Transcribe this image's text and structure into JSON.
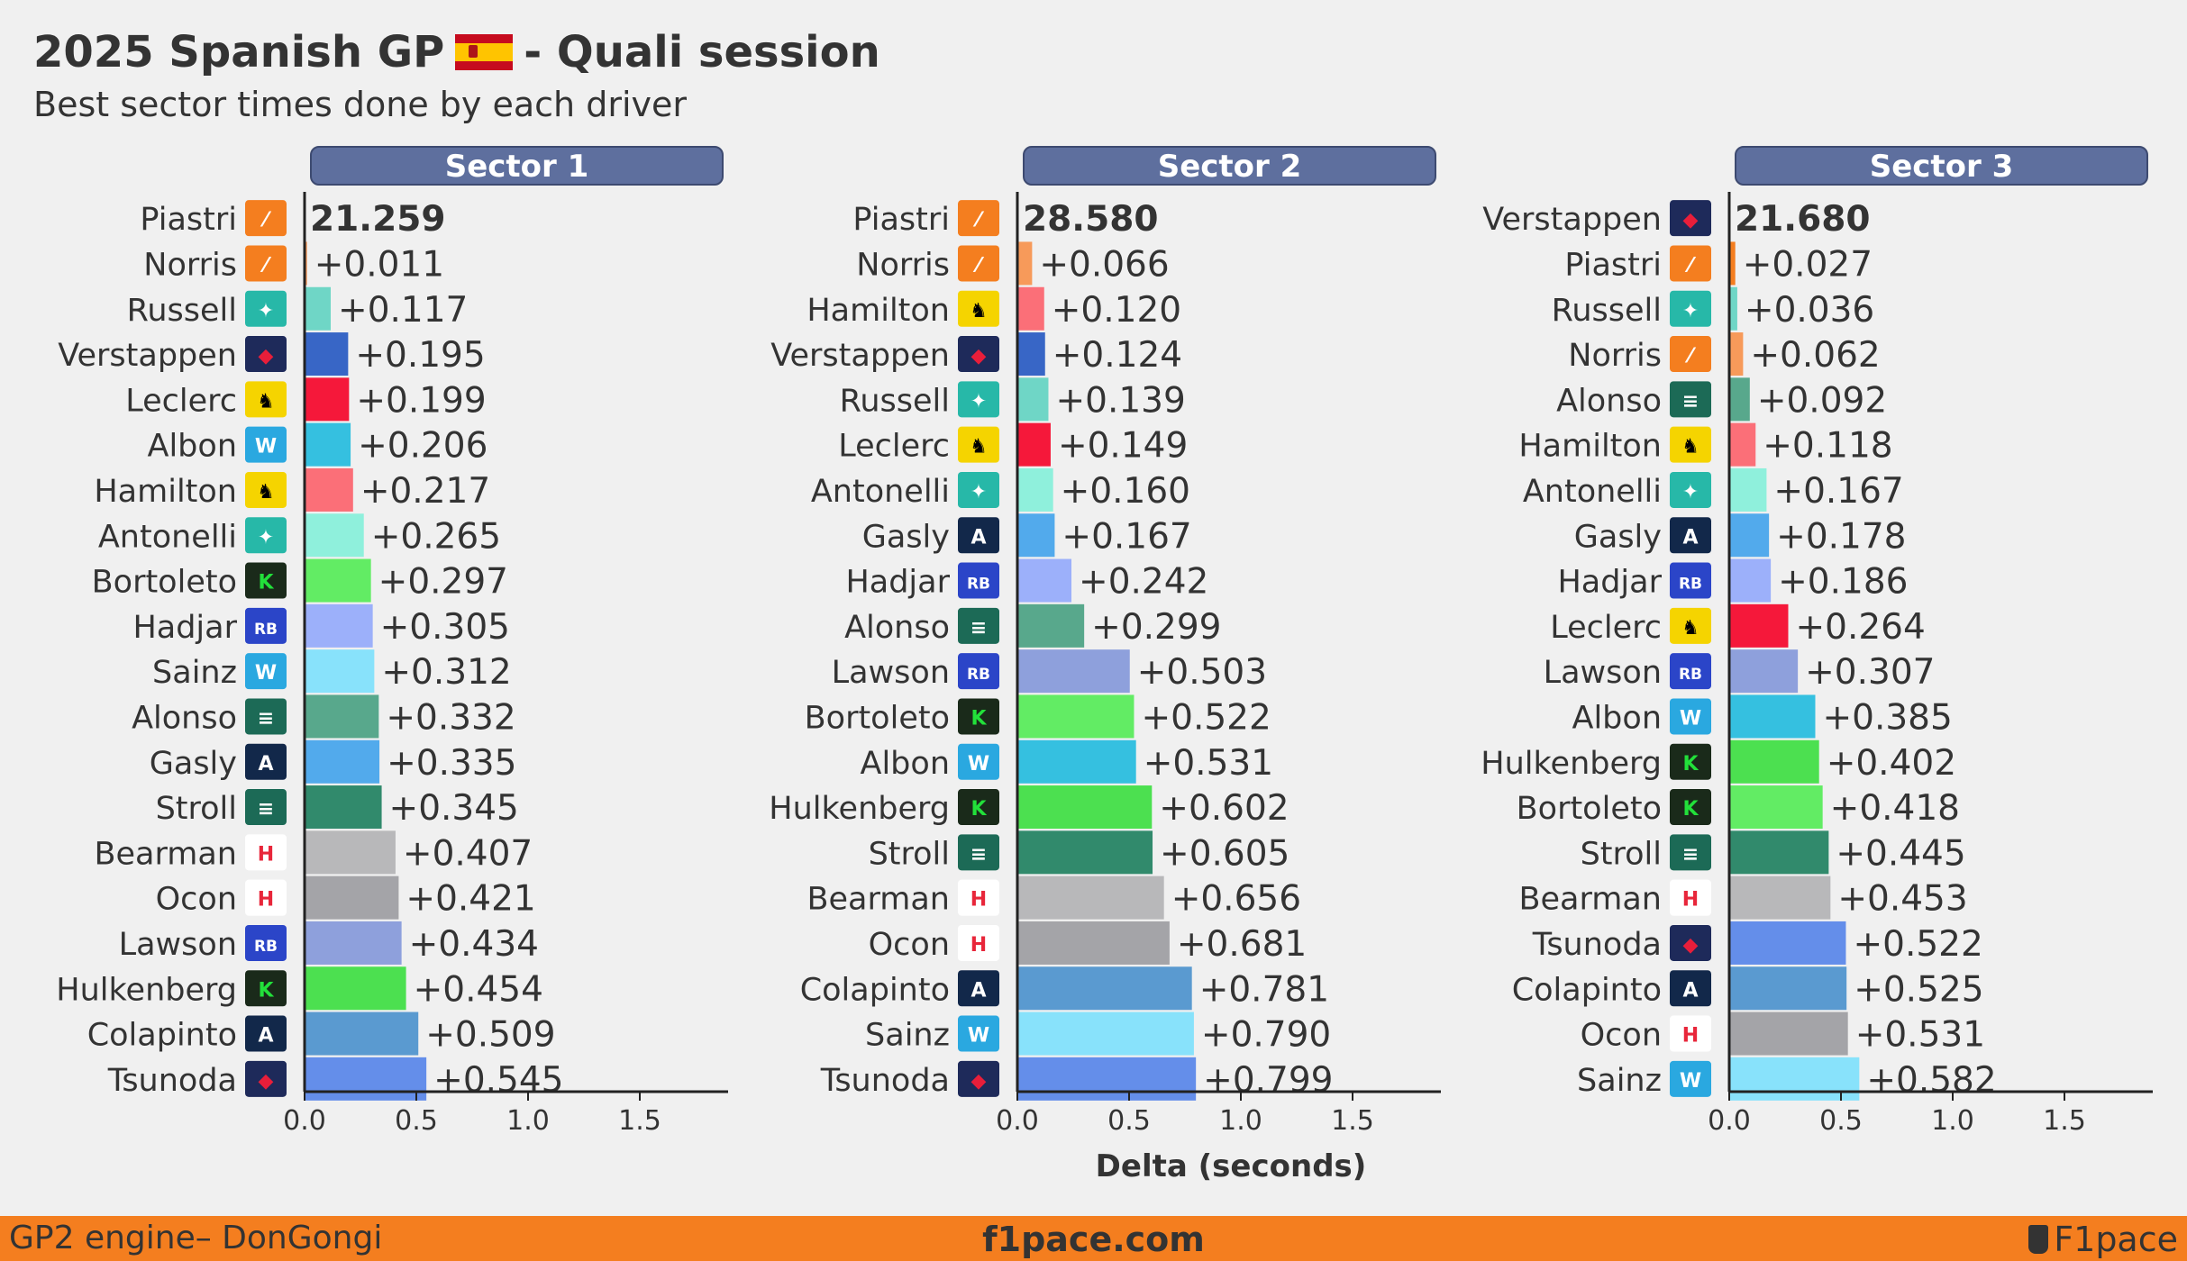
{
  "header": {
    "title_left": "2025 Spanish GP",
    "title_right": "- Quali session",
    "flag_icon": "spain-flag-icon",
    "subtitle": "Best sector times done by each driver"
  },
  "footer": {
    "left": "GP2 engine– DonGongi",
    "center": "f1pace.com",
    "right": "F1pace",
    "right_icon": "cup-icon"
  },
  "team_colors": {
    "mclaren": "#f47e1f",
    "mercedes": "#27b8a8",
    "redbull": "#1e2a5a",
    "ferrari": "#f5d400",
    "williams": "#2aa8e0",
    "sauber": "#1a2a1a",
    "racingbulls": "#2b45c8",
    "astonmartin": "#1c6a56",
    "alpine": "#12284a",
    "haas": "#e8263a"
  },
  "chart_data": [
    {
      "type": "bar",
      "title": "Sector 1",
      "best_time": "21.259",
      "xlabel": "",
      "xlim": [
        0,
        1.85
      ],
      "xticks": [
        "0.0",
        "0.5",
        "1.0",
        "1.5"
      ],
      "drivers": [
        {
          "name": "Piastri",
          "team": "mclaren",
          "delta": 0,
          "label": "21.259",
          "color": "#f47e1f"
        },
        {
          "name": "Norris",
          "team": "mclaren",
          "delta": 0.011,
          "label": "+0.011",
          "color": "#f79a5a"
        },
        {
          "name": "Russell",
          "team": "mercedes",
          "delta": 0.117,
          "label": "+0.117",
          "color": "#6fd6c6"
        },
        {
          "name": "Verstappen",
          "team": "redbull",
          "delta": 0.195,
          "label": "+0.195",
          "color": "#3866c6"
        },
        {
          "name": "Leclerc",
          "team": "ferrari",
          "delta": 0.199,
          "label": "+0.199",
          "color": "#f5183a"
        },
        {
          "name": "Albon",
          "team": "williams",
          "delta": 0.206,
          "label": "+0.206",
          "color": "#35c0e0"
        },
        {
          "name": "Hamilton",
          "team": "ferrari",
          "delta": 0.217,
          "label": "+0.217",
          "color": "#fb6f78"
        },
        {
          "name": "Antonelli",
          "team": "mercedes",
          "delta": 0.265,
          "label": "+0.265",
          "color": "#8ff0dc"
        },
        {
          "name": "Bortoleto",
          "team": "sauber",
          "delta": 0.297,
          "label": "+0.297",
          "color": "#62ec64"
        },
        {
          "name": "Hadjar",
          "team": "racingbulls",
          "delta": 0.305,
          "label": "+0.305",
          "color": "#9cb0fa"
        },
        {
          "name": "Sainz",
          "team": "williams",
          "delta": 0.312,
          "label": "+0.312",
          "color": "#88e2fb"
        },
        {
          "name": "Alonso",
          "team": "astonmartin",
          "delta": 0.332,
          "label": "+0.332",
          "color": "#58a88c"
        },
        {
          "name": "Gasly",
          "team": "alpine",
          "delta": 0.335,
          "label": "+0.335",
          "color": "#52aaec"
        },
        {
          "name": "Stroll",
          "team": "astonmartin",
          "delta": 0.345,
          "label": "+0.345",
          "color": "#318a6c"
        },
        {
          "name": "Bearman",
          "team": "haas",
          "delta": 0.407,
          "label": "+0.407",
          "color": "#b8b8ba"
        },
        {
          "name": "Ocon",
          "team": "haas",
          "delta": 0.421,
          "label": "+0.421",
          "color": "#a4a4a8"
        },
        {
          "name": "Lawson",
          "team": "racingbulls",
          "delta": 0.434,
          "label": "+0.434",
          "color": "#8ea0dc"
        },
        {
          "name": "Hulkenberg",
          "team": "sauber",
          "delta": 0.454,
          "label": "+0.454",
          "color": "#4ce050"
        },
        {
          "name": "Colapinto",
          "team": "alpine",
          "delta": 0.509,
          "label": "+0.509",
          "color": "#5a9ad0"
        },
        {
          "name": "Tsunoda",
          "team": "redbull",
          "delta": 0.545,
          "label": "+0.545",
          "color": "#648eea"
        }
      ]
    },
    {
      "type": "bar",
      "title": "Sector 2",
      "best_time": "28.580",
      "xlabel": "Delta (seconds)",
      "xlim": [
        0,
        1.85
      ],
      "xticks": [
        "0.0",
        "0.5",
        "1.0",
        "1.5"
      ],
      "drivers": [
        {
          "name": "Piastri",
          "team": "mclaren",
          "delta": 0,
          "label": "28.580",
          "color": "#f47e1f"
        },
        {
          "name": "Norris",
          "team": "mclaren",
          "delta": 0.066,
          "label": "+0.066",
          "color": "#f79a5a"
        },
        {
          "name": "Hamilton",
          "team": "ferrari",
          "delta": 0.12,
          "label": "+0.120",
          "color": "#fb6f78"
        },
        {
          "name": "Verstappen",
          "team": "redbull",
          "delta": 0.124,
          "label": "+0.124",
          "color": "#3866c6"
        },
        {
          "name": "Russell",
          "team": "mercedes",
          "delta": 0.139,
          "label": "+0.139",
          "color": "#6fd6c6"
        },
        {
          "name": "Leclerc",
          "team": "ferrari",
          "delta": 0.149,
          "label": "+0.149",
          "color": "#f5183a"
        },
        {
          "name": "Antonelli",
          "team": "mercedes",
          "delta": 0.16,
          "label": "+0.160",
          "color": "#8ff0dc"
        },
        {
          "name": "Gasly",
          "team": "alpine",
          "delta": 0.167,
          "label": "+0.167",
          "color": "#52aaec"
        },
        {
          "name": "Hadjar",
          "team": "racingbulls",
          "delta": 0.242,
          "label": "+0.242",
          "color": "#9cb0fa"
        },
        {
          "name": "Alonso",
          "team": "astonmartin",
          "delta": 0.299,
          "label": "+0.299",
          "color": "#58a88c"
        },
        {
          "name": "Lawson",
          "team": "racingbulls",
          "delta": 0.503,
          "label": "+0.503",
          "color": "#8ea0dc"
        },
        {
          "name": "Bortoleto",
          "team": "sauber",
          "delta": 0.522,
          "label": "+0.522",
          "color": "#62ec64"
        },
        {
          "name": "Albon",
          "team": "williams",
          "delta": 0.531,
          "label": "+0.531",
          "color": "#35c0e0"
        },
        {
          "name": "Hulkenberg",
          "team": "sauber",
          "delta": 0.602,
          "label": "+0.602",
          "color": "#4ce050"
        },
        {
          "name": "Stroll",
          "team": "astonmartin",
          "delta": 0.605,
          "label": "+0.605",
          "color": "#318a6c"
        },
        {
          "name": "Bearman",
          "team": "haas",
          "delta": 0.656,
          "label": "+0.656",
          "color": "#b8b8ba"
        },
        {
          "name": "Ocon",
          "team": "haas",
          "delta": 0.681,
          "label": "+0.681",
          "color": "#a4a4a8"
        },
        {
          "name": "Colapinto",
          "team": "alpine",
          "delta": 0.781,
          "label": "+0.781",
          "color": "#5a9ad0"
        },
        {
          "name": "Sainz",
          "team": "williams",
          "delta": 0.79,
          "label": "+0.790",
          "color": "#88e2fb"
        },
        {
          "name": "Tsunoda",
          "team": "redbull",
          "delta": 0.799,
          "label": "+0.799",
          "color": "#648eea"
        }
      ]
    },
    {
      "type": "bar",
      "title": "Sector 3",
      "best_time": "21.680",
      "xlabel": "",
      "xlim": [
        0,
        1.85
      ],
      "xticks": [
        "0.0",
        "0.5",
        "1.0",
        "1.5"
      ],
      "drivers": [
        {
          "name": "Verstappen",
          "team": "redbull",
          "delta": 0,
          "label": "21.680",
          "color": "#3866c6"
        },
        {
          "name": "Piastri",
          "team": "mclaren",
          "delta": 0.027,
          "label": "+0.027",
          "color": "#f47e1f"
        },
        {
          "name": "Russell",
          "team": "mercedes",
          "delta": 0.036,
          "label": "+0.036",
          "color": "#6fd6c6"
        },
        {
          "name": "Norris",
          "team": "mclaren",
          "delta": 0.062,
          "label": "+0.062",
          "color": "#f79a5a"
        },
        {
          "name": "Alonso",
          "team": "astonmartin",
          "delta": 0.092,
          "label": "+0.092",
          "color": "#58a88c"
        },
        {
          "name": "Hamilton",
          "team": "ferrari",
          "delta": 0.118,
          "label": "+0.118",
          "color": "#fb6f78"
        },
        {
          "name": "Antonelli",
          "team": "mercedes",
          "delta": 0.167,
          "label": "+0.167",
          "color": "#8ff0dc"
        },
        {
          "name": "Gasly",
          "team": "alpine",
          "delta": 0.178,
          "label": "+0.178",
          "color": "#52aaec"
        },
        {
          "name": "Hadjar",
          "team": "racingbulls",
          "delta": 0.186,
          "label": "+0.186",
          "color": "#9cb0fa"
        },
        {
          "name": "Leclerc",
          "team": "ferrari",
          "delta": 0.264,
          "label": "+0.264",
          "color": "#f5183a"
        },
        {
          "name": "Lawson",
          "team": "racingbulls",
          "delta": 0.307,
          "label": "+0.307",
          "color": "#8ea0dc"
        },
        {
          "name": "Albon",
          "team": "williams",
          "delta": 0.385,
          "label": "+0.385",
          "color": "#35c0e0"
        },
        {
          "name": "Hulkenberg",
          "team": "sauber",
          "delta": 0.402,
          "label": "+0.402",
          "color": "#4ce050"
        },
        {
          "name": "Bortoleto",
          "team": "sauber",
          "delta": 0.418,
          "label": "+0.418",
          "color": "#62ec64"
        },
        {
          "name": "Stroll",
          "team": "astonmartin",
          "delta": 0.445,
          "label": "+0.445",
          "color": "#318a6c"
        },
        {
          "name": "Bearman",
          "team": "haas",
          "delta": 0.453,
          "label": "+0.453",
          "color": "#b8b8ba"
        },
        {
          "name": "Tsunoda",
          "team": "redbull",
          "delta": 0.522,
          "label": "+0.522",
          "color": "#648eea"
        },
        {
          "name": "Colapinto",
          "team": "alpine",
          "delta": 0.525,
          "label": "+0.525",
          "color": "#5a9ad0"
        },
        {
          "name": "Ocon",
          "team": "haas",
          "delta": 0.531,
          "label": "+0.531",
          "color": "#a4a4a8"
        },
        {
          "name": "Sainz",
          "team": "williams",
          "delta": 0.582,
          "label": "+0.582",
          "color": "#88e2fb"
        }
      ]
    }
  ]
}
